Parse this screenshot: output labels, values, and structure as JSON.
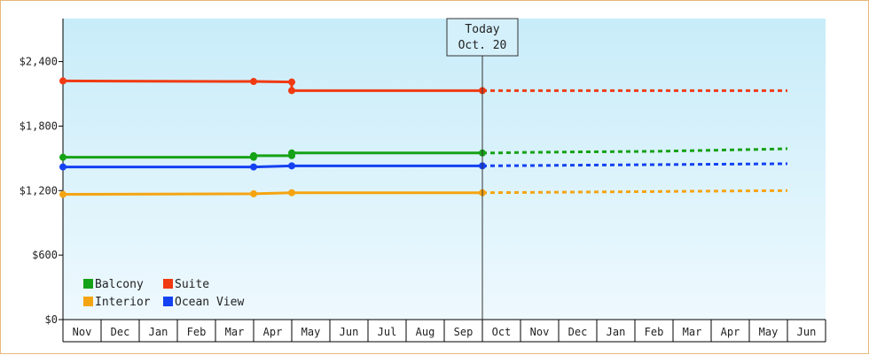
{
  "chart_data": {
    "type": "line",
    "months": [
      "Nov",
      "Dec",
      "Jan",
      "Feb",
      "Mar",
      "Apr",
      "May",
      "Jun",
      "Jul",
      "Aug",
      "Sep",
      "Oct",
      "Nov",
      "Dec",
      "Jan",
      "Feb",
      "Mar",
      "Apr",
      "May",
      "Jun"
    ],
    "y_ticks": [
      {
        "value": 0,
        "label": "$0"
      },
      {
        "value": 600,
        "label": "$600"
      },
      {
        "value": 1200,
        "label": "$1,200"
      },
      {
        "value": 1800,
        "label": "$1,800"
      },
      {
        "value": 2400,
        "label": "$2,400"
      }
    ],
    "ylim": [
      0,
      2800
    ],
    "grid": false,
    "today": {
      "line1": "Today",
      "line2": "Oct. 20",
      "x": 11.0
    },
    "legend": {
      "placement": "bottom-left",
      "columns": [
        [
          "Balcony",
          "Interior"
        ],
        [
          "Suite",
          "Ocean View"
        ]
      ]
    },
    "series": [
      {
        "name": "Suite",
        "color": "#f03a12",
        "actual": [
          [
            0,
            2220
          ],
          [
            5,
            2215
          ],
          [
            6,
            2210
          ],
          [
            6,
            2130
          ],
          [
            11,
            2130
          ]
        ],
        "markers": [
          [
            0,
            2220
          ],
          [
            5,
            2215
          ],
          [
            6,
            2210
          ],
          [
            6,
            2130
          ],
          [
            11,
            2130
          ]
        ],
        "forecast": [
          [
            11,
            2130
          ],
          [
            19,
            2130
          ]
        ]
      },
      {
        "name": "Balcony",
        "color": "#16a216",
        "actual": [
          [
            0,
            1510
          ],
          [
            5,
            1510
          ],
          [
            5,
            1525
          ],
          [
            6,
            1525
          ],
          [
            6,
            1550
          ],
          [
            11,
            1550
          ]
        ],
        "markers": [
          [
            0,
            1510
          ],
          [
            5,
            1510
          ],
          [
            5,
            1525
          ],
          [
            6,
            1525
          ],
          [
            6,
            1550
          ],
          [
            11,
            1550
          ]
        ],
        "forecast": [
          [
            11,
            1550
          ],
          [
            11.4,
            1550
          ],
          [
            12,
            1555
          ],
          [
            13.5,
            1560
          ],
          [
            15.5,
            1565
          ],
          [
            17,
            1575
          ],
          [
            18.5,
            1585
          ],
          [
            19,
            1590
          ]
        ]
      },
      {
        "name": "Ocean View",
        "color": "#1441f2",
        "actual": [
          [
            0,
            1420
          ],
          [
            5,
            1420
          ],
          [
            6,
            1430
          ],
          [
            11,
            1430
          ]
        ],
        "markers": [
          [
            0,
            1420
          ],
          [
            5,
            1420
          ],
          [
            6,
            1430
          ],
          [
            11,
            1430
          ]
        ],
        "forecast": [
          [
            11,
            1430
          ],
          [
            13,
            1435
          ],
          [
            15,
            1440
          ],
          [
            17,
            1445
          ],
          [
            19,
            1450
          ]
        ]
      },
      {
        "name": "Interior",
        "color": "#f5a411",
        "actual": [
          [
            0,
            1165
          ],
          [
            5,
            1170
          ],
          [
            6,
            1180
          ],
          [
            11,
            1180
          ]
        ],
        "markers": [
          [
            0,
            1165
          ],
          [
            5,
            1170
          ],
          [
            6,
            1180
          ],
          [
            11,
            1180
          ]
        ],
        "forecast": [
          [
            11,
            1180
          ],
          [
            13,
            1185
          ],
          [
            15,
            1190
          ],
          [
            17,
            1195
          ],
          [
            19,
            1200
          ]
        ]
      }
    ]
  }
}
